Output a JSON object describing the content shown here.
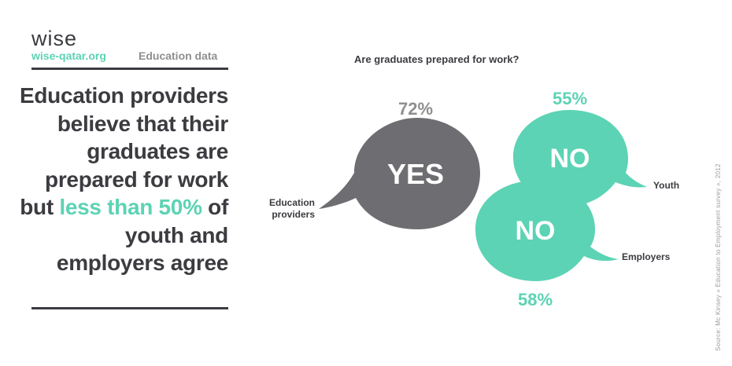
{
  "brand": {
    "logo": "wise",
    "site": "wise-qatar.org",
    "section": "Education data"
  },
  "headline": {
    "part1": "Education providers believe that their graduates are prepared for work but ",
    "highlight": "less than 50%",
    "part2": " of youth and employers agree"
  },
  "source": "Source: Mc Kinsey « Education to Employment survey », 2012",
  "colors": {
    "dark": "#3b3b40",
    "accent": "#5cd3b4",
    "grey_bubble": "#6e6e72",
    "grey_text": "#8f8f8f"
  },
  "chart_data": {
    "type": "bubble-comparison",
    "title": "Are graduates prepared for work?",
    "series": [
      {
        "label": "Education providers",
        "answer": "YES",
        "percent": 72
      },
      {
        "label": "Youth",
        "answer": "NO",
        "percent": 55
      },
      {
        "label": "Employers",
        "answer": "NO",
        "percent": 58
      }
    ]
  }
}
